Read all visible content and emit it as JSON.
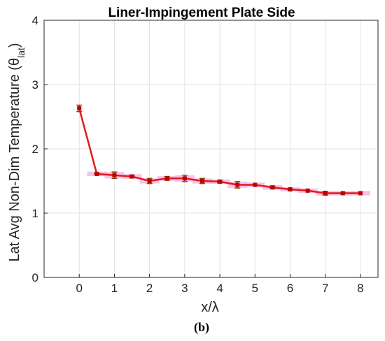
{
  "chart_data": {
    "type": "line",
    "title": "Liner-Impingement Plate Side",
    "xlabel": "x/λ",
    "ylabel_main": "Lat Avg Non-Dim Temperature (θ",
    "ylabel_sub": "lat",
    "ylabel_close": ")",
    "caption": "(b)",
    "xlim": [
      -1,
      8.5
    ],
    "ylim": [
      0,
      4
    ],
    "xticks": [
      0,
      1,
      2,
      3,
      4,
      5,
      6,
      7,
      8
    ],
    "yticks": [
      0,
      1,
      2,
      3,
      4
    ],
    "grid": true,
    "series": [
      {
        "line_color": "#e41a1a",
        "marker_color": "#c00000",
        "errorbar_color": "#8b4513",
        "band_color": "#f5b8e8",
        "x": [
          0,
          0.5,
          1,
          1.5,
          2,
          2.5,
          3,
          3.5,
          4,
          4.5,
          5,
          5.5,
          6,
          6.5,
          7,
          7.5,
          8
        ],
        "y": [
          2.63,
          1.61,
          1.59,
          1.57,
          1.5,
          1.54,
          1.54,
          1.5,
          1.49,
          1.44,
          1.44,
          1.4,
          1.37,
          1.35,
          1.31,
          1.31,
          1.31
        ],
        "err": [
          0.05,
          0.01,
          0.05,
          0.02,
          0.04,
          0.03,
          0.05,
          0.04,
          0.02,
          0.05,
          0.0,
          0.02,
          0.01,
          0.0,
          0.03,
          0.01,
          0.0
        ]
      }
    ]
  }
}
